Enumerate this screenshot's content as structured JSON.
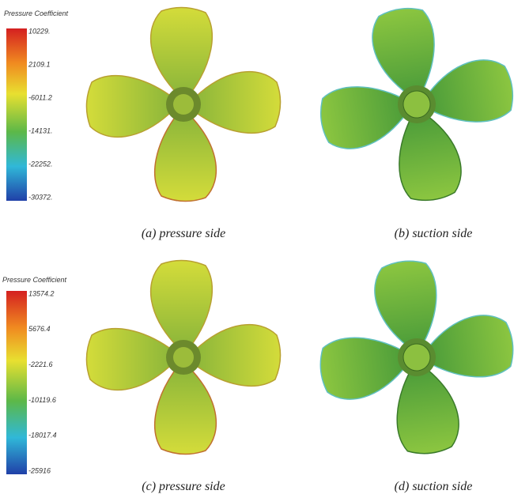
{
  "panels": [
    {
      "caption": "(a) pressure side"
    },
    {
      "caption": "(b) suction side"
    },
    {
      "caption": "(c) pressure side"
    },
    {
      "caption": "(d) suction side"
    }
  ],
  "legends": [
    {
      "title": "Pressure Coefficient",
      "labels": [
        "10229.",
        "2109.1",
        "-6011.2",
        "-14131.",
        "-22252.",
        "-30372."
      ]
    },
    {
      "title": "Pressure Coefficient",
      "labels": [
        "13574.2",
        "5676.4",
        "-2221.6",
        "-10119.6",
        "-18017.4",
        "-25916"
      ]
    }
  ]
}
